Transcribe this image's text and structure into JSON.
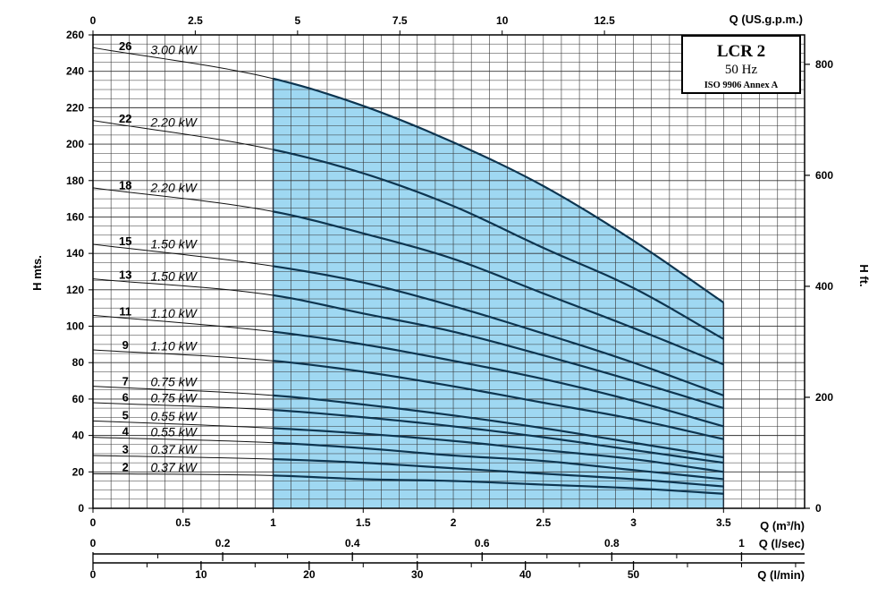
{
  "chart_data": {
    "type": "line",
    "legend": {
      "title": "LCR 2",
      "frequency": "50 Hz",
      "standard": "ISO 9906 Annex A",
      "placement": "top-right"
    },
    "xlabel": "Q (m³/h)",
    "ylabel": "H mts.",
    "y2label": "H ft.",
    "top_axis_label": "Q (US.g.p.m.)",
    "xlim": [
      0,
      3.95
    ],
    "ylim": [
      0,
      260
    ],
    "y2lim": [
      0,
      853
    ],
    "operating_range": [
      1,
      3.5
    ],
    "x_ticks": [
      {
        "value": 0,
        "label": "0"
      },
      {
        "value": 0.5,
        "label": "0.5"
      },
      {
        "value": 1,
        "label": "1"
      },
      {
        "value": 1.5,
        "label": "1.5"
      },
      {
        "value": 2,
        "label": "2"
      },
      {
        "value": 2.5,
        "label": "2.5"
      },
      {
        "value": 3,
        "label": "3"
      },
      {
        "value": 3.5,
        "label": "3.5"
      }
    ],
    "y_ticks": [
      {
        "value": 0,
        "label": "0"
      },
      {
        "value": 20,
        "label": "20"
      },
      {
        "value": 40,
        "label": "40"
      },
      {
        "value": 60,
        "label": "60"
      },
      {
        "value": 80,
        "label": "80"
      },
      {
        "value": 100,
        "label": "100"
      },
      {
        "value": 120,
        "label": "120"
      },
      {
        "value": 140,
        "label": "140"
      },
      {
        "value": 160,
        "label": "160"
      },
      {
        "value": 180,
        "label": "180"
      },
      {
        "value": 200,
        "label": "200"
      },
      {
        "value": 220,
        "label": "220"
      },
      {
        "value": 240,
        "label": "240"
      },
      {
        "value": 260,
        "label": "260"
      }
    ],
    "y2_ticks": [
      {
        "value": 0,
        "label": "0"
      },
      {
        "value": 200,
        "label": "200"
      },
      {
        "value": 400,
        "label": "400"
      },
      {
        "value": 600,
        "label": "600"
      },
      {
        "value": 800,
        "label": "800"
      }
    ],
    "top_ticks": [
      {
        "value": 0,
        "label": "0"
      },
      {
        "value": 2.5,
        "label": "2.5"
      },
      {
        "value": 5,
        "label": "5"
      },
      {
        "value": 7.5,
        "label": "7.5"
      },
      {
        "value": 10,
        "label": "10"
      },
      {
        "value": 12.5,
        "label": "12.5"
      }
    ],
    "secondary_axes": [
      {
        "label": "Q (l/sec)",
        "max": 1.1,
        "minor_step": 0.1,
        "ticks": [
          {
            "value": 0,
            "label": "0"
          },
          {
            "value": 0.2,
            "label": "0.2"
          },
          {
            "value": 0.4,
            "label": "0.4"
          },
          {
            "value": 0.6,
            "label": "0.6"
          },
          {
            "value": 0.8,
            "label": "0.8"
          },
          {
            "value": 1,
            "label": "1"
          }
        ]
      },
      {
        "label": "Q (l/min)",
        "max": 66,
        "minor_step": 5,
        "ticks": [
          {
            "value": 0,
            "label": "0"
          },
          {
            "value": 10,
            "label": "10"
          },
          {
            "value": 20,
            "label": "20"
          },
          {
            "value": 30,
            "label": "30"
          },
          {
            "value": 40,
            "label": "40"
          },
          {
            "value": 50,
            "label": "50"
          }
        ]
      }
    ],
    "x": [
      0,
      1,
      1.5,
      2,
      2.5,
      3,
      3.5
    ],
    "series": [
      {
        "name": "26",
        "power": "3.00 kW",
        "values": [
          253,
          236,
          221,
          201,
          177,
          147,
          113
        ]
      },
      {
        "name": "22",
        "power": "2.20 kW",
        "values": [
          213,
          197,
          184,
          166,
          143,
          121,
          93
        ]
      },
      {
        "name": "18",
        "power": "2.20 kW",
        "values": [
          176,
          163,
          151,
          137,
          118,
          99,
          79
        ]
      },
      {
        "name": "15",
        "power": "1.50 kW",
        "values": [
          145,
          133,
          124,
          111,
          96,
          80,
          62
        ]
      },
      {
        "name": "13",
        "power": "1.50 kW",
        "values": [
          126,
          117,
          107,
          97,
          84,
          70,
          55
        ]
      },
      {
        "name": "11",
        "power": "1.10 kW",
        "values": [
          106,
          97,
          90,
          81,
          71,
          59,
          45
        ]
      },
      {
        "name": "9",
        "power": "1.10 kW",
        "values": [
          87,
          81,
          75,
          67,
          58,
          49,
          38
        ]
      },
      {
        "name": "7",
        "power": "0.75 kW",
        "values": [
          67,
          62,
          57,
          51,
          44,
          36,
          28
        ]
      },
      {
        "name": "6",
        "power": "0.75 kW",
        "values": [
          58,
          54,
          50,
          45,
          39,
          32,
          25
        ]
      },
      {
        "name": "5",
        "power": "0.55 kW",
        "values": [
          48,
          44,
          41,
          37,
          32,
          27,
          20
        ]
      },
      {
        "name": "4",
        "power": "0.55 kW",
        "values": [
          39,
          36,
          33,
          29,
          26,
          21,
          16
        ]
      },
      {
        "name": "3",
        "power": "0.37 kW",
        "values": [
          29,
          27,
          25,
          22,
          19,
          16,
          12
        ]
      },
      {
        "name": "2",
        "power": "0.37 kW",
        "values": [
          19,
          18,
          16,
          15,
          13,
          11,
          8
        ]
      }
    ]
  }
}
